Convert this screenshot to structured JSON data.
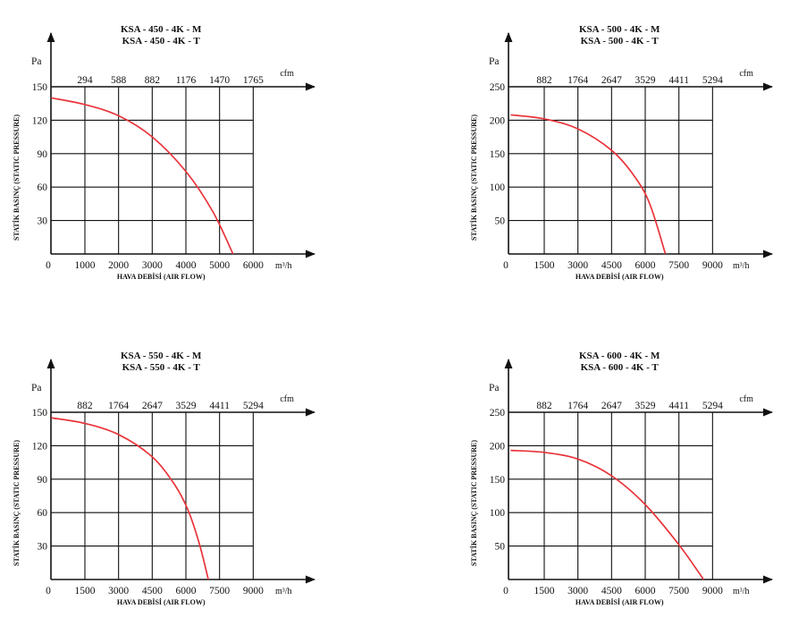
{
  "chart_data": [
    {
      "type": "line",
      "title": [
        "KSA - 450 - 4K - M",
        "KSA - 450 - 4K - T"
      ],
      "ylabel": "STATİK BASINÇ (STATIC PRESSURE)",
      "xlabel": "HAVA DEBİSİ (AIR FLOW)",
      "y_unit": "Pa",
      "x_unit": "m³/h",
      "cfm_unit": "cfm",
      "x_ticks": [
        "0",
        "1000",
        "2000",
        "3000",
        "4000",
        "5000",
        "6000"
      ],
      "y_ticks": [
        "150",
        "120",
        "90",
        "60",
        "30"
      ],
      "cfm_ticks": [
        "294",
        "588",
        "882",
        "1176",
        "1470",
        "1765"
      ],
      "xlim": [
        0,
        6000
      ],
      "ylim": [
        0,
        150
      ],
      "curve_color": "#e8343a",
      "series": [
        {
          "x": [
            0,
            1000,
            2000,
            3000,
            4000,
            4800,
            5400
          ],
          "y": [
            140,
            134,
            124,
            105,
            74,
            38,
            0
          ]
        }
      ]
    },
    {
      "type": "line",
      "title": [
        "KSA - 500 - 4K - M",
        "KSA - 500 - 4K - T"
      ],
      "ylabel": "STATİK BASINÇ (STATIC PRESSURE)",
      "xlabel": "HAVA DEBİSİ (AIR FLOW)",
      "y_unit": "Pa",
      "x_unit": "m³/h",
      "cfm_unit": "cfm",
      "x_ticks": [
        "0",
        "1500",
        "3000",
        "4500",
        "6000",
        "7500",
        "9000"
      ],
      "y_ticks": [
        "250",
        "200",
        "150",
        "100",
        "50"
      ],
      "cfm_ticks": [
        "882",
        "1764",
        "2647",
        "3529",
        "4411",
        "5294"
      ],
      "xlim": [
        0,
        9000
      ],
      "ylim": [
        0,
        250
      ],
      "curve_color": "#e8343a",
      "series": [
        {
          "x": [
            0,
            1500,
            3000,
            4500,
            5500,
            6200,
            6900
          ],
          "y": [
            208,
            202,
            187,
            155,
            117,
            75,
            0
          ]
        }
      ]
    },
    {
      "type": "line",
      "title": [
        "KSA - 550 - 4K - M",
        "KSA - 550 - 4K - T"
      ],
      "ylabel": "STATİK BASINÇ (STATIC PRESSURE)",
      "xlabel": "HAVA DEBİSİ (AIR FLOW)",
      "y_unit": "Pa",
      "x_unit": "m³/h",
      "cfm_unit": "cfm",
      "x_ticks": [
        "0",
        "1500",
        "3000",
        "4500",
        "6000",
        "7500",
        "9000"
      ],
      "y_ticks": [
        "150",
        "120",
        "90",
        "60",
        "30"
      ],
      "cfm_ticks": [
        "882",
        "1764",
        "2647",
        "3529",
        "4411",
        "5294"
      ],
      "xlim": [
        0,
        9000
      ],
      "ylim": [
        0,
        150
      ],
      "curve_color": "#e8343a",
      "series": [
        {
          "x": [
            0,
            1500,
            3000,
            4500,
            5500,
            6100,
            6600,
            7000
          ],
          "y": [
            145,
            140,
            130,
            110,
            85,
            62,
            32,
            0
          ]
        }
      ]
    },
    {
      "type": "line",
      "title": [
        "KSA - 600 - 4K - M",
        "KSA - 600 - 4K - T"
      ],
      "ylabel": "STATİK BASINÇ (STATIC PRESSURE)",
      "xlabel": "HAVA DEBİSİ (AIR FLOW)",
      "y_unit": "Pa",
      "x_unit": "m³/h",
      "cfm_unit": "cfm",
      "x_ticks": [
        "0",
        "1500",
        "3000",
        "4500",
        "6000",
        "7500",
        "9000"
      ],
      "y_ticks": [
        "250",
        "200",
        "150",
        "100",
        "50"
      ],
      "cfm_ticks": [
        "882",
        "1764",
        "2647",
        "3529",
        "4411",
        "5294"
      ],
      "xlim": [
        0,
        9000
      ],
      "ylim": [
        0,
        250
      ],
      "curve_color": "#e8343a",
      "series": [
        {
          "x": [
            0,
            1500,
            3000,
            4500,
            6000,
            7500,
            8600
          ],
          "y": [
            193,
            190,
            180,
            155,
            112,
            52,
            0
          ]
        }
      ]
    }
  ]
}
